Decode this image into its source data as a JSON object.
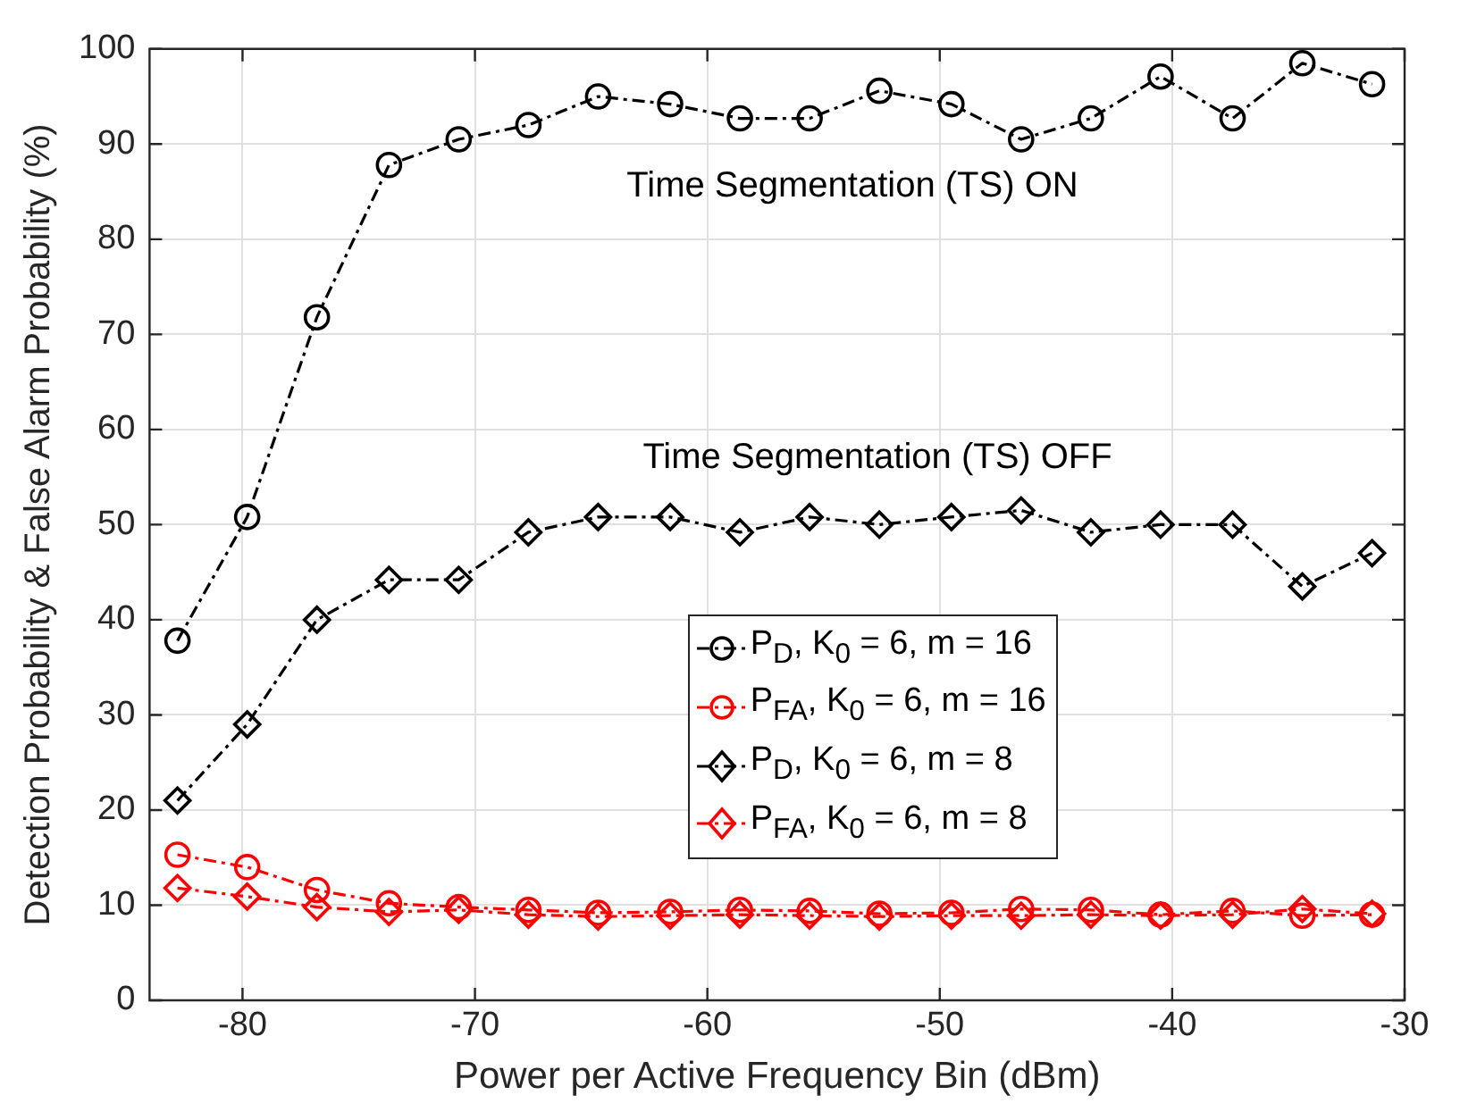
{
  "chart_data": {
    "type": "line",
    "xlabel": "Power per Active Frequency Bin (dBm)",
    "ylabel": "Detection Probability & False Alarm Probability (%)",
    "x": [
      -82.8,
      -79.8,
      -76.8,
      -73.7,
      -70.7,
      -67.7,
      -64.7,
      -61.6,
      -58.6,
      -55.6,
      -52.6,
      -49.5,
      -46.5,
      -43.5,
      -40.5,
      -37.4,
      -34.4,
      -31.4
    ],
    "series": [
      {
        "name": "P$_{D}$, K$_{0}$ = 6, m = 16",
        "color": "#000000",
        "marker": "circle",
        "values": [
          37.8,
          50.8,
          71.8,
          87.8,
          90.5,
          92,
          95,
          94.2,
          92.7,
          92.7,
          95.6,
          94.2,
          90.5,
          92.7,
          97.1,
          92.7,
          98.5,
          96.3
        ]
      },
      {
        "name": "P$_{FA}$, K$_{0}$ = 6, m = 16",
        "color": "#ff0000",
        "marker": "circle",
        "values": [
          15.3,
          14,
          11.6,
          10.2,
          9.8,
          9.5,
          9.2,
          9.3,
          9.5,
          9.4,
          9.1,
          9.2,
          9.6,
          9.5,
          9,
          9.4,
          8.9,
          9
        ]
      },
      {
        "name": "P$_{D}$, K$_{0}$ = 6, m = 8",
        "color": "#000000",
        "marker": "diamond",
        "values": [
          21,
          29,
          40,
          44.2,
          44.2,
          49.2,
          50.8,
          50.8,
          49.2,
          50.8,
          50,
          50.8,
          51.5,
          49.2,
          50,
          50,
          43.5,
          47
        ]
      },
      {
        "name": "P$_{FA}$, K$_{0}$ = 6, m = 8",
        "color": "#ff0000",
        "marker": "diamond",
        "values": [
          11.8,
          10.9,
          9.8,
          9.3,
          9.5,
          9,
          8.8,
          8.9,
          9,
          8.9,
          8.8,
          8.9,
          8.9,
          9,
          8.9,
          9,
          9.6,
          9.1
        ]
      }
    ],
    "annotations": [
      "Time Segmentation (TS) ON",
      "Time Segmentation (TS) OFF"
    ],
    "xlim": [
      -84,
      -30
    ],
    "xticks": [
      -80,
      -70,
      -60,
      -50,
      -40,
      -30
    ],
    "ylim": [
      0,
      100
    ],
    "yticks": [
      0,
      10,
      20,
      30,
      40,
      50,
      60,
      70,
      80,
      90,
      100
    ],
    "grid": true,
    "legend": "center",
    "line_style": "dashed"
  }
}
